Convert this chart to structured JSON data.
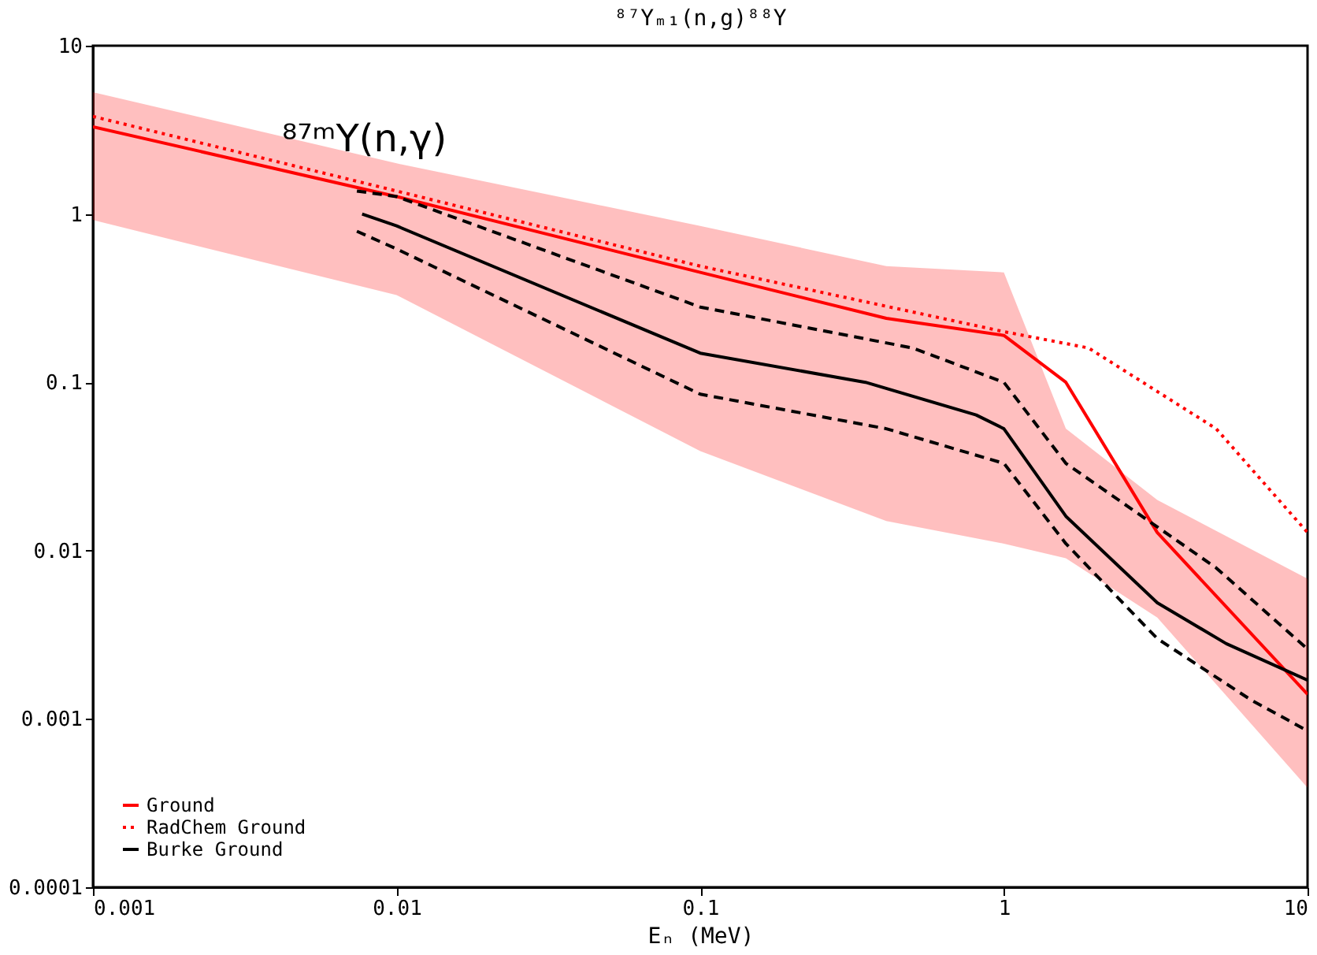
{
  "chart_data": {
    "type": "line",
    "title": "⁸⁷Yₘ₁(n,g)⁸⁸Y",
    "xlabel": "Eₙ (MeV)",
    "log": "xy",
    "grid": false,
    "legend": "bottom left",
    "marker": "none",
    "xlim": [
      0.001,
      10
    ],
    "ylim": [
      0.0001,
      10
    ],
    "xticks": [
      0.001,
      0.01,
      0.1,
      1,
      10
    ],
    "yticks": [
      0.0001,
      0.001,
      0.01,
      0.1,
      1,
      10
    ],
    "annotations": [
      "⁸⁷ᵐY(n,γ)"
    ],
    "series": [
      {
        "name": "Ground",
        "color": "#ff0000",
        "line_style": "solid",
        "x": [
          0.001,
          0.01,
          0.1,
          0.41,
          1,
          1.6,
          3.2,
          10
        ],
        "values": [
          3.3,
          1.27,
          0.45,
          0.24,
          0.19,
          0.1,
          0.0128,
          0.0014
        ],
        "lower": [
          0.92,
          0.33,
          0.039,
          0.015,
          0.011,
          0.009,
          0.004,
          0.00039
        ],
        "upper": [
          5.3,
          2.0,
          0.85,
          0.49,
          0.45,
          0.053,
          0.02,
          0.0068
        ]
      },
      {
        "name": "RadChem Ground",
        "color": "#ff0000",
        "line_style": "dotted",
        "x": [
          0.001,
          0.01,
          0.1,
          1,
          1.9,
          5,
          10
        ],
        "values": [
          3.8,
          1.37,
          0.49,
          0.2,
          0.16,
          0.053,
          0.0128
        ]
      },
      {
        "name": "Burke Ground",
        "color": "#000000",
        "line_style": "solid",
        "x": [
          0.0077,
          0.01,
          0.1,
          0.35,
          0.81,
          1,
          1.6,
          3.2,
          5.4,
          10
        ],
        "values": [
          1.0,
          0.85,
          0.149,
          0.1,
          0.064,
          0.053,
          0.016,
          0.0049,
          0.0028,
          0.0017
        ]
      },
      {
        "color": "#000000",
        "line_style": "dashed",
        "x": [
          0.0074,
          0.01,
          0.1,
          0.5,
          1,
          1.6,
          5,
          10
        ],
        "values": [
          1.37,
          1.27,
          0.28,
          0.16,
          0.1,
          0.033,
          0.0079,
          0.0026
        ]
      },
      {
        "color": "#000000",
        "line_style": "dashed",
        "x": [
          0.0074,
          0.01,
          0.1,
          0.41,
          1,
          1.6,
          3.2,
          6.5,
          10
        ],
        "values": [
          0.79,
          0.62,
          0.085,
          0.053,
          0.033,
          0.011,
          0.003,
          0.0013,
          0.00085
        ]
      }
    ]
  }
}
